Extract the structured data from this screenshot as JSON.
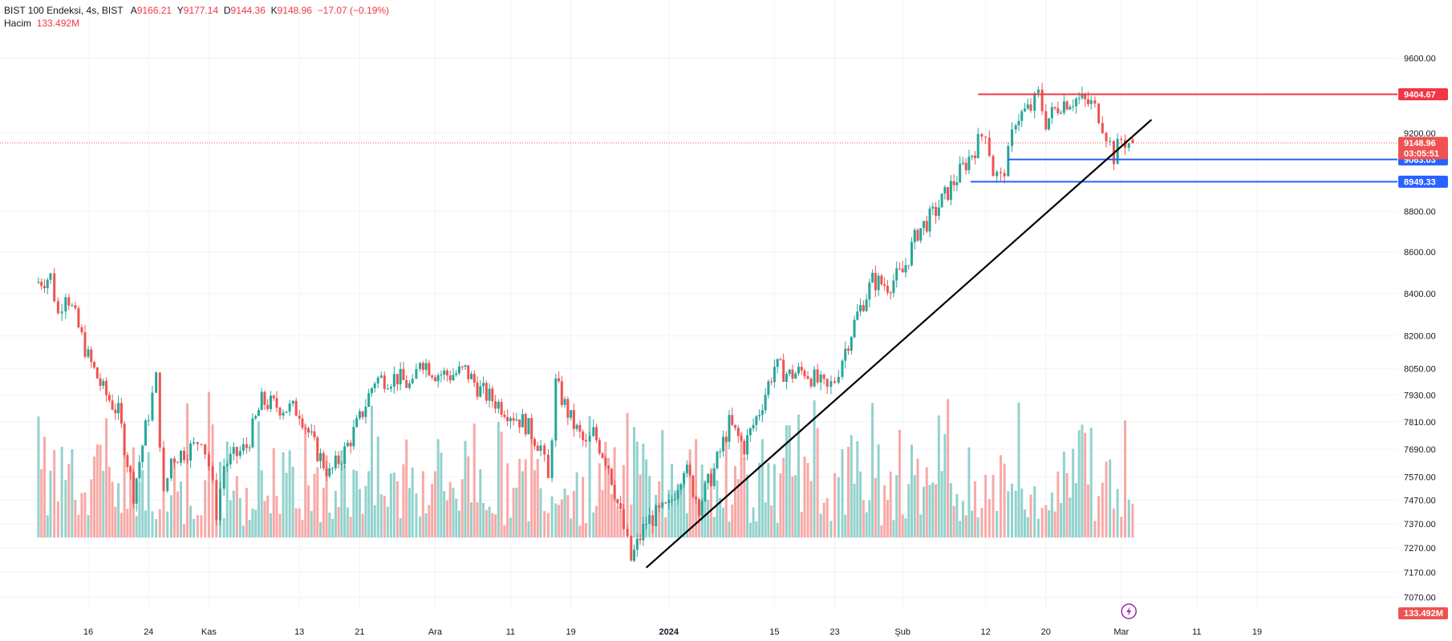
{
  "header": {
    "symbol": "BIST 100 Endeksi",
    "interval": "4s",
    "exchange": "BIST",
    "open_label": "A",
    "open": "9166.21",
    "high_label": "Y",
    "high": "9177.14",
    "low_label": "D",
    "low": "9144.36",
    "close_label": "K",
    "close": "9148.96",
    "change": "−17.07 (−0.19%)",
    "volume_label": "Hacim",
    "volume_value": "133.492M"
  },
  "colors": {
    "up": "#26a69a",
    "down": "#ef5350",
    "up_vol": "#92d2cc",
    "down_vol": "#f7a9a7",
    "resistance": "#f23645",
    "support": "#2962ff",
    "trendline": "#000000",
    "grid": "#f0f3fa"
  },
  "chart_data": {
    "type": "candlestick",
    "title": "BIST 100 Endeksi, 4s, BIST",
    "y_scale": "log",
    "ylim": [
      7030,
      9760
    ],
    "y_ticks": [
      9600,
      9200,
      8800,
      8600,
      8400,
      8200,
      8050,
      7930,
      7810,
      7690,
      7570,
      7470,
      7370,
      7270,
      7170,
      7070
    ],
    "y_tick_labels": [
      "9600.00",
      "9200.00",
      "8800.00",
      "8600.00",
      "8400.00",
      "8200.00",
      "8050.00",
      "7930.00",
      "7810.00",
      "7690.00",
      "7570.00",
      "7470.00",
      "7370.00",
      "7270.00",
      "7170.00",
      "7070.00"
    ],
    "x_ticks": [
      {
        "label": "16",
        "date": "2023-10-16"
      },
      {
        "label": "24",
        "date": "2023-10-24"
      },
      {
        "label": "Kas",
        "date": "2023-11-01"
      },
      {
        "label": "13",
        "date": "2023-11-13"
      },
      {
        "label": "21",
        "date": "2023-11-21"
      },
      {
        "label": "Ara",
        "date": "2023-12-01"
      },
      {
        "label": "11",
        "date": "2023-12-11"
      },
      {
        "label": "19",
        "date": "2023-12-19"
      },
      {
        "label": "2024",
        "date": "2024-01-01"
      },
      {
        "label": "15",
        "date": "2024-01-15"
      },
      {
        "label": "23",
        "date": "2024-01-23"
      },
      {
        "label": "Şub",
        "date": "2024-02-01"
      },
      {
        "label": "12",
        "date": "2024-02-12"
      },
      {
        "label": "20",
        "date": "2024-02-20"
      },
      {
        "label": "Mar",
        "date": "2024-03-01"
      },
      {
        "label": "11",
        "date": "2024-03-11"
      },
      {
        "label": "19",
        "date": "2024-03-19"
      }
    ],
    "price_path": [
      {
        "date": "2023-10-09",
        "close": 8450
      },
      {
        "date": "2023-10-11",
        "close": 8480
      },
      {
        "date": "2023-10-12",
        "close": 8300
      },
      {
        "date": "2023-10-13",
        "close": 8420
      },
      {
        "date": "2023-10-16",
        "close": 8100
      },
      {
        "date": "2023-10-18",
        "close": 7950
      },
      {
        "date": "2023-10-20",
        "close": 7850
      },
      {
        "date": "2023-10-22",
        "close": 7500
      },
      {
        "date": "2023-10-24",
        "close": 7850
      },
      {
        "date": "2023-10-25",
        "close": 8000
      },
      {
        "date": "2023-10-26",
        "close": 7480
      },
      {
        "date": "2023-10-27",
        "close": 7650
      },
      {
        "date": "2023-10-30",
        "close": 7700
      },
      {
        "date": "2023-10-31",
        "close": 7750
      },
      {
        "date": "2023-11-01",
        "close": 7620
      },
      {
        "date": "2023-11-02",
        "close": 7420
      },
      {
        "date": "2023-11-03",
        "close": 7620
      },
      {
        "date": "2023-11-06",
        "close": 7700
      },
      {
        "date": "2023-11-08",
        "close": 7900
      },
      {
        "date": "2023-11-10",
        "close": 7880
      },
      {
        "date": "2023-11-13",
        "close": 7860
      },
      {
        "date": "2023-11-15",
        "close": 7700
      },
      {
        "date": "2023-11-17",
        "close": 7580
      },
      {
        "date": "2023-11-19",
        "close": 7680
      },
      {
        "date": "2023-11-21",
        "close": 7820
      },
      {
        "date": "2023-11-23",
        "close": 8000
      },
      {
        "date": "2023-11-26",
        "close": 8010
      },
      {
        "date": "2023-11-28",
        "close": 7960
      },
      {
        "date": "2023-11-29",
        "close": 8100
      },
      {
        "date": "2023-12-01",
        "close": 8030
      },
      {
        "date": "2023-12-03",
        "close": 8020
      },
      {
        "date": "2023-12-05",
        "close": 8040
      },
      {
        "date": "2023-12-07",
        "close": 7950
      },
      {
        "date": "2023-12-09",
        "close": 7900
      },
      {
        "date": "2023-12-11",
        "close": 7850
      },
      {
        "date": "2023-12-13",
        "close": 7800
      },
      {
        "date": "2023-12-15",
        "close": 7700
      },
      {
        "date": "2023-12-16",
        "close": 7550
      },
      {
        "date": "2023-12-17",
        "close": 7980
      },
      {
        "date": "2023-12-19",
        "close": 7820
      },
      {
        "date": "2023-12-21",
        "close": 7700
      },
      {
        "date": "2023-12-22",
        "close": 7760
      },
      {
        "date": "2023-12-24",
        "close": 7620
      },
      {
        "date": "2023-12-26",
        "close": 7350
      },
      {
        "date": "2023-12-27",
        "close": 7220
      },
      {
        "date": "2023-12-29",
        "close": 7380
      },
      {
        "date": "2024-01-01",
        "close": 7440
      },
      {
        "date": "2024-01-03",
        "close": 7620
      },
      {
        "date": "2024-01-05",
        "close": 7450
      },
      {
        "date": "2024-01-07",
        "close": 7600
      },
      {
        "date": "2024-01-09",
        "close": 7800
      },
      {
        "date": "2024-01-11",
        "close": 7700
      },
      {
        "date": "2024-01-13",
        "close": 7860
      },
      {
        "date": "2024-01-15",
        "close": 8060
      },
      {
        "date": "2024-01-17",
        "close": 8020
      },
      {
        "date": "2024-01-19",
        "close": 8040
      },
      {
        "date": "2024-01-22",
        "close": 7950
      },
      {
        "date": "2024-01-23",
        "close": 8000
      },
      {
        "date": "2024-01-24",
        "close": 8100
      },
      {
        "date": "2024-01-26",
        "close": 8300
      },
      {
        "date": "2024-01-28",
        "close": 8460
      },
      {
        "date": "2024-01-30",
        "close": 8440
      },
      {
        "date": "2024-02-01",
        "close": 8500
      },
      {
        "date": "2024-02-03",
        "close": 8700
      },
      {
        "date": "2024-02-05",
        "close": 8780
      },
      {
        "date": "2024-02-07",
        "close": 8900
      },
      {
        "date": "2024-02-09",
        "close": 9020
      },
      {
        "date": "2024-02-11",
        "close": 9150
      },
      {
        "date": "2024-02-12",
        "close": 9220
      },
      {
        "date": "2024-02-13",
        "close": 9000
      },
      {
        "date": "2024-02-14",
        "close": 8960
      },
      {
        "date": "2024-02-15",
        "close": 9080
      },
      {
        "date": "2024-02-16",
        "close": 9280
      },
      {
        "date": "2024-02-18",
        "close": 9330
      },
      {
        "date": "2024-02-19",
        "close": 9400
      },
      {
        "date": "2024-02-20",
        "close": 9260
      },
      {
        "date": "2024-02-22",
        "close": 9360
      },
      {
        "date": "2024-02-24",
        "close": 9380
      },
      {
        "date": "2024-02-26",
        "close": 9350
      },
      {
        "date": "2024-02-27",
        "close": 9300
      },
      {
        "date": "2024-02-28",
        "close": 9200
      },
      {
        "date": "2024-02-29",
        "close": 9080
      },
      {
        "date": "2024-03-01",
        "close": 9166
      },
      {
        "date": "2024-03-02",
        "close": 9149
      }
    ],
    "last": {
      "open": 9166.21,
      "high": 9177.14,
      "low": 9144.36,
      "close": 9148.96
    },
    "annotations": [
      {
        "type": "horizontal_line",
        "label": "9404.67",
        "value": 9404.67,
        "color": "#f23645",
        "from": "2024-02-11"
      },
      {
        "type": "horizontal_line",
        "label": "9063.03",
        "value": 9063.03,
        "color": "#2962ff",
        "from": "2024-02-15"
      },
      {
        "type": "horizontal_line",
        "label": "8949.33",
        "value": 8949.33,
        "color": "#2962ff",
        "from": "2024-02-10"
      },
      {
        "type": "trend_line",
        "color": "#000000",
        "from": {
          "date": "2023-12-29",
          "value": 7190
        },
        "to": {
          "date": "2024-03-05",
          "value": 9270
        }
      }
    ],
    "price_badges": {
      "last_price": "9148.96",
      "countdown": "03:05:51",
      "volume": "133.492M"
    },
    "volume": {
      "min": 30,
      "max": 190,
      "unit": "M"
    }
  }
}
